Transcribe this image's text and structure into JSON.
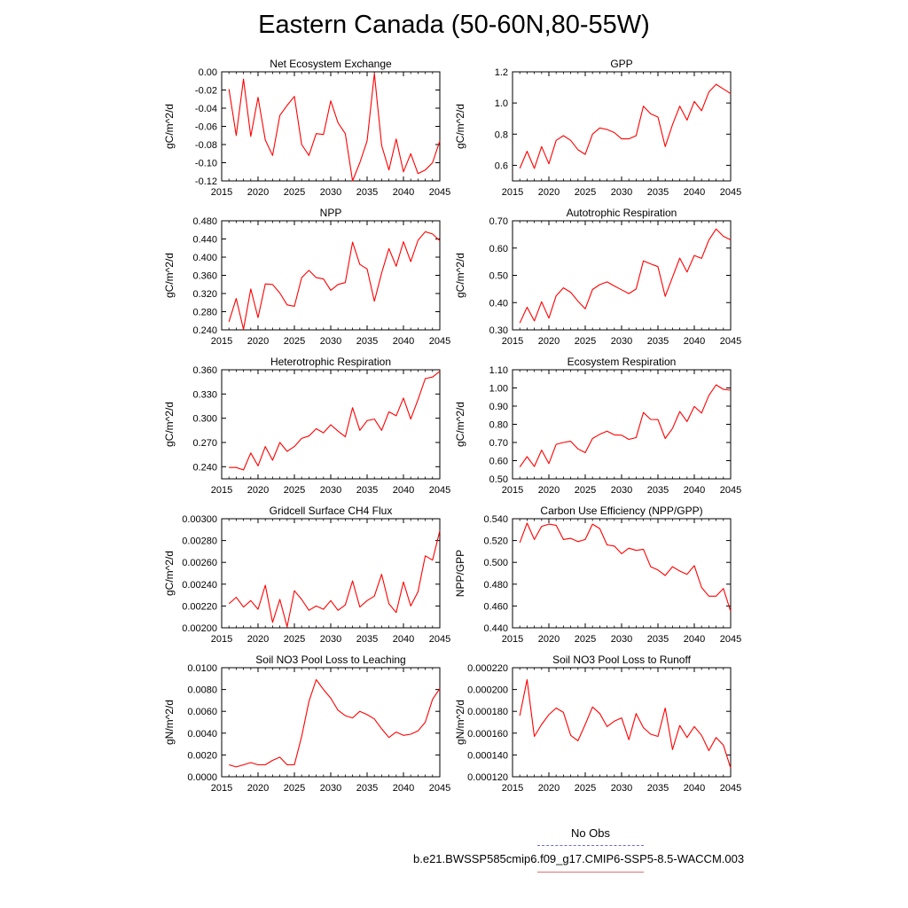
{
  "figure": {
    "title": "Eastern Canada (50-60N,80-55W)",
    "line_color": "#ff0000",
    "legend": {
      "obs_label": "No Obs",
      "obs_color": "#6a6ae0",
      "case_label": "b.e21.BWSSP585cmip6.f09_g17.CMIP6-SSP5-8.5-WACCM.003",
      "case_color": "#e07070"
    }
  },
  "chart_data": [
    {
      "type": "line",
      "title": "Net Ecosystem Exchange",
      "ylabel": "gC/m^2/d",
      "xlim": [
        2015,
        2045
      ],
      "ylim": [
        -0.12,
        0.0
      ],
      "xticks": [
        "2015",
        "2020",
        "2025",
        "2030",
        "2035",
        "2040",
        "2045"
      ],
      "yticks": [
        "0.00",
        "-0.02",
        "-0.04",
        "-0.06",
        "-0.08",
        "-0.10",
        "-0.12"
      ],
      "x": [
        2016,
        2017,
        2018,
        2019,
        2020,
        2021,
        2022,
        2023,
        2024,
        2025,
        2026,
        2027,
        2028,
        2029,
        2030,
        2031,
        2032,
        2033,
        2034,
        2035,
        2036,
        2037,
        2038,
        2039,
        2040,
        2041,
        2042,
        2043,
        2044,
        2045
      ],
      "y": [
        -0.019,
        -0.07,
        -0.008,
        -0.071,
        -0.028,
        -0.075,
        -0.092,
        -0.048,
        -0.037,
        -0.027,
        -0.08,
        -0.092,
        -0.068,
        -0.069,
        -0.032,
        -0.056,
        -0.068,
        -0.12,
        -0.1,
        -0.076,
        -0.002,
        -0.081,
        -0.108,
        -0.074,
        -0.11,
        -0.09,
        -0.112,
        -0.108,
        -0.1,
        -0.076
      ]
    },
    {
      "type": "line",
      "title": "GPP",
      "ylabel": "gC/m^2/d",
      "xlim": [
        2015,
        2045
      ],
      "ylim": [
        0.5,
        1.2
      ],
      "xticks": [
        "2015",
        "2020",
        "2025",
        "2030",
        "2035",
        "2040",
        "2045"
      ],
      "yticks": [
        "0.6",
        "0.8",
        "1.0",
        "1.2"
      ],
      "x": [
        2016,
        2017,
        2018,
        2019,
        2020,
        2021,
        2022,
        2023,
        2024,
        2025,
        2026,
        2027,
        2028,
        2029,
        2030,
        2031,
        2032,
        2033,
        2034,
        2035,
        2036,
        2037,
        2038,
        2039,
        2040,
        2041,
        2042,
        2043,
        2044,
        2045
      ],
      "y": [
        0.58,
        0.69,
        0.58,
        0.72,
        0.61,
        0.76,
        0.79,
        0.76,
        0.7,
        0.67,
        0.8,
        0.84,
        0.83,
        0.81,
        0.77,
        0.77,
        0.79,
        0.98,
        0.93,
        0.91,
        0.72,
        0.86,
        0.98,
        0.89,
        1.01,
        0.95,
        1.07,
        1.12,
        1.09,
        1.06
      ]
    },
    {
      "type": "line",
      "title": "NPP",
      "ylabel": "gC/m^2/d",
      "xlim": [
        2015,
        2045
      ],
      "ylim": [
        0.24,
        0.48
      ],
      "xticks": [
        "2015",
        "2020",
        "2025",
        "2030",
        "2035",
        "2040",
        "2045"
      ],
      "yticks": [
        "0.240",
        "0.280",
        "0.320",
        "0.360",
        "0.400",
        "0.440",
        "0.480"
      ],
      "x": [
        2016,
        2017,
        2018,
        2019,
        2020,
        2021,
        2022,
        2023,
        2024,
        2025,
        2026,
        2027,
        2028,
        2029,
        2030,
        2031,
        2032,
        2033,
        2034,
        2035,
        2036,
        2037,
        2038,
        2039,
        2040,
        2041,
        2042,
        2043,
        2044,
        2045
      ],
      "y": [
        0.258,
        0.309,
        0.241,
        0.33,
        0.267,
        0.341,
        0.34,
        0.321,
        0.295,
        0.292,
        0.355,
        0.371,
        0.355,
        0.352,
        0.327,
        0.34,
        0.344,
        0.433,
        0.384,
        0.374,
        0.303,
        0.365,
        0.419,
        0.38,
        0.434,
        0.39,
        0.437,
        0.456,
        0.451,
        0.436
      ]
    },
    {
      "type": "line",
      "title": "Autotrophic Respiration",
      "ylabel": "gC/m^2/d",
      "xlim": [
        2015,
        2045
      ],
      "ylim": [
        0.3,
        0.7
      ],
      "xticks": [
        "2015",
        "2020",
        "2025",
        "2030",
        "2035",
        "2040",
        "2045"
      ],
      "yticks": [
        "0.30",
        "0.40",
        "0.50",
        "0.60",
        "0.70"
      ],
      "x": [
        2016,
        2017,
        2018,
        2019,
        2020,
        2021,
        2022,
        2023,
        2024,
        2025,
        2026,
        2027,
        2028,
        2029,
        2030,
        2031,
        2032,
        2033,
        2034,
        2035,
        2036,
        2037,
        2038,
        2039,
        2040,
        2041,
        2042,
        2043,
        2044,
        2045
      ],
      "y": [
        0.325,
        0.383,
        0.333,
        0.403,
        0.343,
        0.425,
        0.454,
        0.438,
        0.405,
        0.377,
        0.448,
        0.466,
        0.476,
        0.461,
        0.447,
        0.433,
        0.45,
        0.553,
        0.542,
        0.532,
        0.423,
        0.493,
        0.563,
        0.512,
        0.573,
        0.562,
        0.629,
        0.67,
        0.643,
        0.63
      ]
    },
    {
      "type": "line",
      "title": "Heterotrophic Respiration",
      "ylabel": "gC/m^2/d",
      "xlim": [
        2015,
        2045
      ],
      "ylim": [
        0.225,
        0.36
      ],
      "xticks": [
        "2015",
        "2020",
        "2025",
        "2030",
        "2035",
        "2040",
        "2045"
      ],
      "yticks": [
        "0.240",
        "0.270",
        "0.300",
        "0.330",
        "0.360"
      ],
      "x": [
        2016,
        2017,
        2018,
        2019,
        2020,
        2021,
        2022,
        2023,
        2024,
        2025,
        2026,
        2027,
        2028,
        2029,
        2030,
        2031,
        2032,
        2033,
        2034,
        2035,
        2036,
        2037,
        2038,
        2039,
        2040,
        2041,
        2042,
        2043,
        2044,
        2045
      ],
      "y": [
        0.239,
        0.239,
        0.236,
        0.257,
        0.241,
        0.265,
        0.248,
        0.27,
        0.259,
        0.265,
        0.275,
        0.278,
        0.287,
        0.282,
        0.292,
        0.284,
        0.277,
        0.313,
        0.285,
        0.297,
        0.299,
        0.285,
        0.308,
        0.303,
        0.325,
        0.299,
        0.323,
        0.349,
        0.351,
        0.358
      ]
    },
    {
      "type": "line",
      "title": "Ecosystem Respiration",
      "ylabel": "gC/m^2/d",
      "xlim": [
        2015,
        2045
      ],
      "ylim": [
        0.5,
        1.1
      ],
      "xticks": [
        "2015",
        "2020",
        "2025",
        "2030",
        "2035",
        "2040",
        "2045"
      ],
      "yticks": [
        "0.50",
        "0.60",
        "0.70",
        "0.80",
        "0.90",
        "1.00",
        "1.10"
      ],
      "x": [
        2016,
        2017,
        2018,
        2019,
        2020,
        2021,
        2022,
        2023,
        2024,
        2025,
        2026,
        2027,
        2028,
        2029,
        2030,
        2031,
        2032,
        2033,
        2034,
        2035,
        2036,
        2037,
        2038,
        2039,
        2040,
        2041,
        2042,
        2043,
        2044,
        2045
      ],
      "y": [
        0.565,
        0.622,
        0.568,
        0.658,
        0.584,
        0.69,
        0.7,
        0.707,
        0.665,
        0.644,
        0.722,
        0.745,
        0.762,
        0.742,
        0.74,
        0.717,
        0.727,
        0.865,
        0.827,
        0.826,
        0.722,
        0.777,
        0.87,
        0.815,
        0.898,
        0.862,
        0.958,
        1.017,
        0.992,
        0.988
      ]
    },
    {
      "type": "line",
      "title": "Gridcell Surface CH4 Flux",
      "ylabel": "gC/m^2/d",
      "xlim": [
        2015,
        2045
      ],
      "ylim": [
        0.002,
        0.003
      ],
      "xticks": [
        "2015",
        "2020",
        "2025",
        "2030",
        "2035",
        "2040",
        "2045"
      ],
      "yticks": [
        "0.00200",
        "0.00220",
        "0.00240",
        "0.00260",
        "0.00280",
        "0.00300"
      ],
      "x": [
        2016,
        2017,
        2018,
        2019,
        2020,
        2021,
        2022,
        2023,
        2024,
        2025,
        2026,
        2027,
        2028,
        2029,
        2030,
        2031,
        2032,
        2033,
        2034,
        2035,
        2036,
        2037,
        2038,
        2039,
        2040,
        2041,
        2042,
        2043,
        2044,
        2045
      ],
      "y": [
        0.00222,
        0.00228,
        0.00219,
        0.00225,
        0.00217,
        0.00239,
        0.00205,
        0.00226,
        0.00201,
        0.00234,
        0.00226,
        0.00216,
        0.0022,
        0.00217,
        0.00225,
        0.00216,
        0.00221,
        0.00243,
        0.00219,
        0.00225,
        0.00229,
        0.00249,
        0.00222,
        0.00214,
        0.00242,
        0.0022,
        0.00233,
        0.00266,
        0.00262,
        0.00289
      ]
    },
    {
      "type": "line",
      "title": "Carbon Use Efficiency (NPP/GPP)",
      "ylabel": "NPP/GPP",
      "xlim": [
        2015,
        2045
      ],
      "ylim": [
        0.44,
        0.54
      ],
      "xticks": [
        "2015",
        "2020",
        "2025",
        "2030",
        "2035",
        "2040",
        "2045"
      ],
      "yticks": [
        "0.440",
        "0.460",
        "0.480",
        "0.500",
        "0.520",
        "0.540"
      ],
      "x": [
        2016,
        2017,
        2018,
        2019,
        2020,
        2021,
        2022,
        2023,
        2024,
        2025,
        2026,
        2027,
        2028,
        2029,
        2030,
        2031,
        2032,
        2033,
        2034,
        2035,
        2036,
        2037,
        2038,
        2039,
        2040,
        2041,
        2042,
        2043,
        2044,
        2045
      ],
      "y": [
        0.518,
        0.536,
        0.521,
        0.533,
        0.535,
        0.534,
        0.521,
        0.522,
        0.519,
        0.521,
        0.535,
        0.531,
        0.516,
        0.515,
        0.508,
        0.513,
        0.511,
        0.512,
        0.496,
        0.493,
        0.488,
        0.496,
        0.492,
        0.489,
        0.497,
        0.477,
        0.469,
        0.469,
        0.476,
        0.455
      ]
    },
    {
      "type": "line",
      "title": "Soil NO3 Pool Loss to Leaching",
      "ylabel": "gN/m^2/d",
      "xlim": [
        2015,
        2045
      ],
      "ylim": [
        0.0,
        0.01
      ],
      "xticks": [
        "2015",
        "2020",
        "2025",
        "2030",
        "2035",
        "2040",
        "2045"
      ],
      "yticks": [
        "0.0000",
        "0.0020",
        "0.0040",
        "0.0060",
        "0.0080",
        "0.0100"
      ],
      "x": [
        2016,
        2017,
        2018,
        2019,
        2020,
        2021,
        2022,
        2023,
        2024,
        2025,
        2026,
        2027,
        2028,
        2029,
        2030,
        2031,
        2032,
        2033,
        2034,
        2035,
        2036,
        2037,
        2038,
        2039,
        2040,
        2041,
        2042,
        2043,
        2044,
        2045
      ],
      "y": [
        0.0011,
        0.0009,
        0.0011,
        0.0013,
        0.0011,
        0.0011,
        0.0015,
        0.0018,
        0.0011,
        0.0011,
        0.0037,
        0.0069,
        0.0089,
        0.008,
        0.0072,
        0.0061,
        0.0056,
        0.0054,
        0.006,
        0.0057,
        0.0053,
        0.0044,
        0.0036,
        0.0041,
        0.0038,
        0.0039,
        0.0042,
        0.005,
        0.0071,
        0.0081
      ]
    },
    {
      "type": "line",
      "title": "Soil NO3 Pool Loss to Runoff",
      "ylabel": "gN/m^2/d",
      "xlim": [
        2015,
        2045
      ],
      "ylim": [
        0.00012,
        0.00022
      ],
      "xticks": [
        "2015",
        "2020",
        "2025",
        "2030",
        "2035",
        "2040",
        "2045"
      ],
      "yticks": [
        "0.000120",
        "0.000140",
        "0.000160",
        "0.000180",
        "0.000200",
        "0.000220"
      ],
      "x": [
        2016,
        2017,
        2018,
        2019,
        2020,
        2021,
        2022,
        2023,
        2024,
        2025,
        2026,
        2027,
        2028,
        2029,
        2030,
        2031,
        2032,
        2033,
        2034,
        2035,
        2036,
        2037,
        2038,
        2039,
        2040,
        2041,
        2042,
        2043,
        2044,
        2045
      ],
      "y": [
        0.000176,
        0.000209,
        0.000157,
        0.000168,
        0.000177,
        0.000183,
        0.000179,
        0.000158,
        0.000153,
        0.000168,
        0.000184,
        0.000178,
        0.000166,
        0.000171,
        0.000174,
        0.000154,
        0.000178,
        0.000165,
        0.000159,
        0.000157,
        0.000183,
        0.000145,
        0.000167,
        0.000156,
        0.000166,
        0.000158,
        0.000144,
        0.000156,
        0.000149,
        0.000128
      ]
    }
  ]
}
